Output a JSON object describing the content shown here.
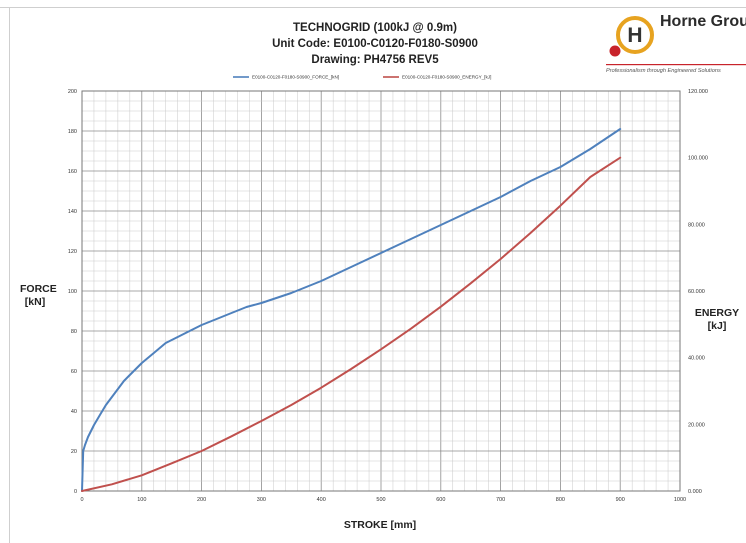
{
  "header": {
    "title_line1": "TECHNOGRID (100kJ @ 0.9m)",
    "title_line2": "Unit Code: E0100-C0120-F0180-S0900",
    "title_line3": "Drawing: PH4756 REV5"
  },
  "logo": {
    "name": "Horne Group",
    "letter": "H",
    "tagline": "Professionalism through Engineered Solutions",
    "ring_color": "#e7a320",
    "dot_color": "#c8232b"
  },
  "chart_data": {
    "type": "line",
    "title": "TECHNOGRID (100kJ @ 0.9m)",
    "xlabel": "STROKE [mm]",
    "ylabel": "FORCE [kN]",
    "y2label": "ENERGY [kJ]",
    "xlim": [
      0,
      1000
    ],
    "ylim": [
      0,
      200
    ],
    "y2lim": [
      0,
      120
    ],
    "grid": true,
    "legend_position": "top",
    "x_ticks": [
      "0",
      "100",
      "200",
      "300",
      "400",
      "500",
      "600",
      "700",
      "800",
      "900",
      "1000"
    ],
    "y_ticks": [
      "0",
      "20",
      "40",
      "60",
      "80",
      "100",
      "120",
      "140",
      "160",
      "180",
      "200"
    ],
    "y2_ticks": [
      "0.000",
      "20.000",
      "40.000",
      "60.000",
      "80.000",
      "100.000",
      "120.000"
    ],
    "series": [
      {
        "name": "E0100-C0120-F0180-S0900_FORCE_[kN]",
        "axis": "left",
        "color": "#4f81bd",
        "x": [
          0,
          2,
          5,
          10,
          20,
          30,
          40,
          50,
          60,
          70,
          80,
          90,
          100,
          120,
          140,
          160,
          180,
          200,
          225,
          250,
          275,
          300,
          350,
          400,
          450,
          500,
          550,
          600,
          650,
          700,
          750,
          800,
          850,
          900
        ],
        "values": [
          0,
          20,
          23,
          27,
          33,
          38,
          43,
          47,
          51,
          55,
          58,
          61,
          64,
          69,
          74,
          77,
          80,
          83,
          86,
          89,
          92,
          94,
          99,
          105,
          112,
          119,
          126,
          133,
          140,
          147,
          155,
          162,
          171,
          181
        ]
      },
      {
        "name": "E0100-C0120-F0180-S0900_ENERGY_[kJ]",
        "axis": "right",
        "color": "#c0504d",
        "x": [
          0,
          50,
          100,
          150,
          200,
          250,
          300,
          350,
          400,
          450,
          500,
          550,
          600,
          650,
          700,
          750,
          800,
          850,
          900
        ],
        "values": [
          0,
          2,
          4.7,
          8.3,
          12,
          16.4,
          21,
          25.8,
          31,
          36.6,
          42.5,
          48.7,
          55.3,
          62.3,
          69.6,
          77.4,
          85.6,
          94.2,
          100
        ]
      }
    ]
  }
}
